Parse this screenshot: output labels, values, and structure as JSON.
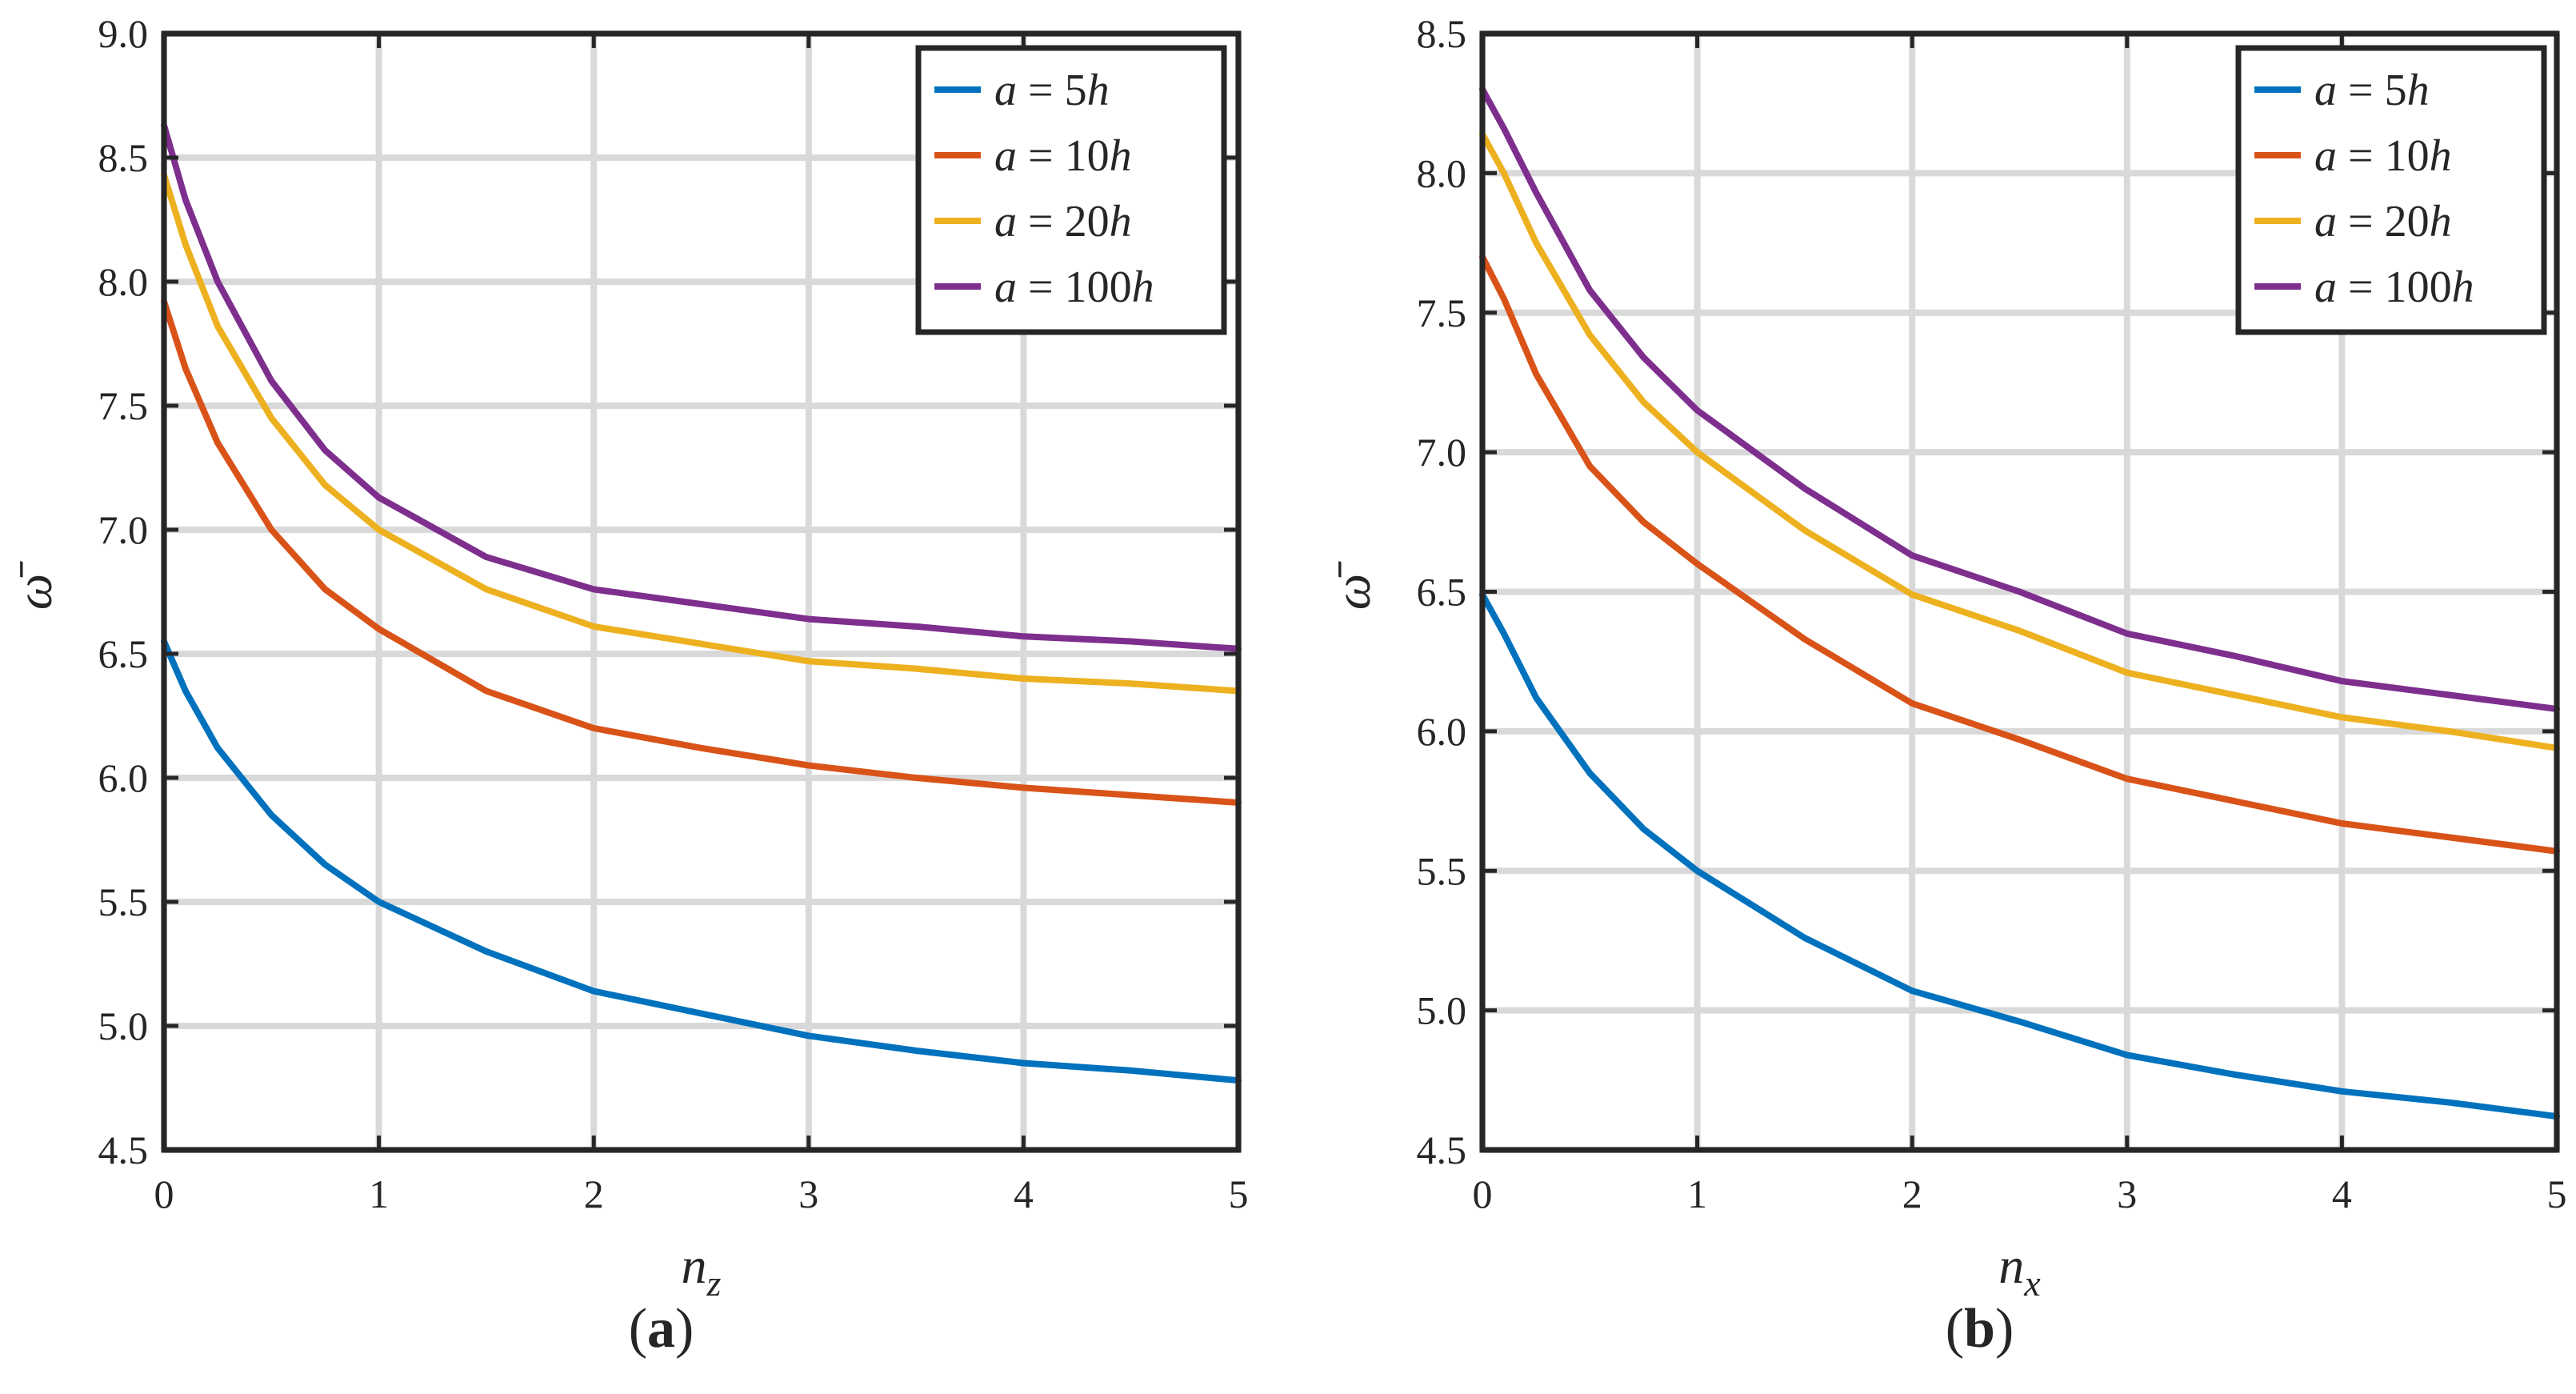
{
  "chart_data": [
    {
      "type": "line",
      "panel": "a",
      "caption_open": "(",
      "caption_letter": "a",
      "caption_close": ")",
      "xlabel": "n_z",
      "xlabel_base": "n",
      "xlabel_sub": "z",
      "ylabel": "ω̄",
      "xlim": [
        0,
        5
      ],
      "ylim": [
        4.5,
        9.0
      ],
      "xticks": [
        0,
        1,
        2,
        3,
        4,
        5
      ],
      "xtick_labels": [
        "0",
        "1",
        "2",
        "3",
        "4",
        "5"
      ],
      "yticks": [
        4.5,
        5.0,
        5.5,
        6.0,
        6.5,
        7.0,
        7.5,
        8.0,
        8.5,
        9.0
      ],
      "ytick_labels": [
        "4.5",
        "5.0",
        "5.5",
        "6.0",
        "6.5",
        "7.0",
        "7.5",
        "8.0",
        "8.5",
        "9.0"
      ],
      "grid": true,
      "legend_position": "top-right",
      "x": [
        0,
        0.1,
        0.25,
        0.5,
        0.75,
        1,
        1.5,
        2,
        2.5,
        3,
        3.5,
        4,
        4.5,
        5
      ],
      "series": [
        {
          "name": "a = 5h",
          "lhs": "a",
          "rhs_num": "5",
          "rhs_var": "h",
          "color": "#0072BD",
          "values": [
            6.55,
            6.35,
            6.12,
            5.85,
            5.65,
            5.5,
            5.3,
            5.14,
            5.05,
            4.96,
            4.9,
            4.85,
            4.82,
            4.78
          ]
        },
        {
          "name": "a = 10h",
          "lhs": "a",
          "rhs_num": "10",
          "rhs_var": "h",
          "color": "#D95319",
          "values": [
            7.92,
            7.65,
            7.35,
            7.0,
            6.76,
            6.6,
            6.35,
            6.2,
            6.12,
            6.05,
            6.0,
            5.96,
            5.93,
            5.9
          ]
        },
        {
          "name": "a = 20h",
          "lhs": "a",
          "rhs_num": "20",
          "rhs_var": "h",
          "color": "#EDB120",
          "values": [
            8.43,
            8.15,
            7.82,
            7.45,
            7.18,
            7.0,
            6.76,
            6.61,
            6.54,
            6.47,
            6.44,
            6.4,
            6.38,
            6.35
          ]
        },
        {
          "name": "a = 100h",
          "lhs": "a",
          "rhs_num": "100",
          "rhs_var": "h",
          "color": "#7E2F8E",
          "values": [
            8.63,
            8.33,
            8.0,
            7.6,
            7.32,
            7.13,
            6.89,
            6.76,
            6.7,
            6.64,
            6.61,
            6.57,
            6.55,
            6.52
          ]
        }
      ]
    },
    {
      "type": "line",
      "panel": "b",
      "caption_open": "(",
      "caption_letter": "b",
      "caption_close": ")",
      "xlabel": "n_x",
      "xlabel_base": "n",
      "xlabel_sub": "x",
      "ylabel": "ω̄",
      "xlim": [
        0,
        5
      ],
      "ylim": [
        4.5,
        8.5
      ],
      "xticks": [
        0,
        1,
        2,
        3,
        4,
        5
      ],
      "xtick_labels": [
        "0",
        "1",
        "2",
        "3",
        "4",
        "5"
      ],
      "yticks": [
        4.5,
        5.0,
        5.5,
        6.0,
        6.5,
        7.0,
        7.5,
        8.0,
        8.5
      ],
      "ytick_labels": [
        "4.5",
        "5.0",
        "5.5",
        "6.0",
        "6.5",
        "7.0",
        "7.5",
        "8.0",
        "8.5"
      ],
      "grid": true,
      "legend_position": "top-right",
      "x": [
        0,
        0.1,
        0.25,
        0.5,
        0.75,
        1,
        1.5,
        2,
        2.5,
        3,
        3.5,
        4,
        4.5,
        5
      ],
      "series": [
        {
          "name": "a = 5h",
          "lhs": "a",
          "rhs_num": "5",
          "rhs_var": "h",
          "color": "#0072BD",
          "values": [
            6.49,
            6.35,
            6.12,
            5.85,
            5.65,
            5.5,
            5.26,
            5.07,
            4.96,
            4.84,
            4.77,
            4.71,
            4.67,
            4.62
          ]
        },
        {
          "name": "a = 10h",
          "lhs": "a",
          "rhs_num": "10",
          "rhs_var": "h",
          "color": "#D95319",
          "values": [
            7.7,
            7.55,
            7.28,
            6.95,
            6.75,
            6.6,
            6.33,
            6.1,
            5.97,
            5.83,
            5.75,
            5.67,
            5.62,
            5.57
          ]
        },
        {
          "name": "a = 20h",
          "lhs": "a",
          "rhs_num": "20",
          "rhs_var": "h",
          "color": "#EDB120",
          "values": [
            8.14,
            8.0,
            7.75,
            7.42,
            7.18,
            7.0,
            6.72,
            6.49,
            6.36,
            6.21,
            6.13,
            6.05,
            6.0,
            5.94
          ]
        },
        {
          "name": "a = 100h",
          "lhs": "a",
          "rhs_num": "100",
          "rhs_var": "h",
          "color": "#7E2F8E",
          "values": [
            8.3,
            8.16,
            7.93,
            7.58,
            7.34,
            7.15,
            6.87,
            6.63,
            6.5,
            6.35,
            6.27,
            6.18,
            6.13,
            6.08
          ]
        }
      ]
    }
  ]
}
